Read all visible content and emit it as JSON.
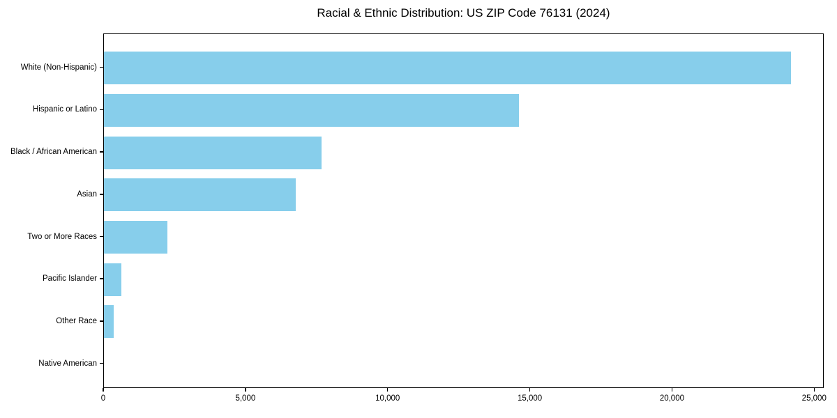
{
  "title": "Racial & Ethnic Distribution: US ZIP Code 76131 (2024)",
  "chart_data": {
    "type": "bar",
    "orientation": "horizontal",
    "title": "Racial & Ethnic Distribution: US ZIP Code 76131 (2024)",
    "xlabel": "",
    "ylabel": "",
    "categories": [
      "White (Non-Hispanic)",
      "Hispanic or Latino",
      "Black / African American",
      "Asian",
      "Two or More Races",
      "Pacific Islander",
      "Other Race",
      "Native American"
    ],
    "values": [
      24160,
      14590,
      7650,
      6740,
      2230,
      610,
      345,
      0
    ],
    "xlim": [
      0,
      25300
    ],
    "xticks": [
      0,
      5000,
      10000,
      15000,
      20000,
      25000
    ],
    "xtick_labels": [
      "0",
      "5,000",
      "10,000",
      "15,000",
      "20,000",
      "25,000"
    ],
    "bar_color": "#87CEEB",
    "axis_color": "#000000",
    "background_color": "#ffffff",
    "grid": false,
    "legend": null
  }
}
